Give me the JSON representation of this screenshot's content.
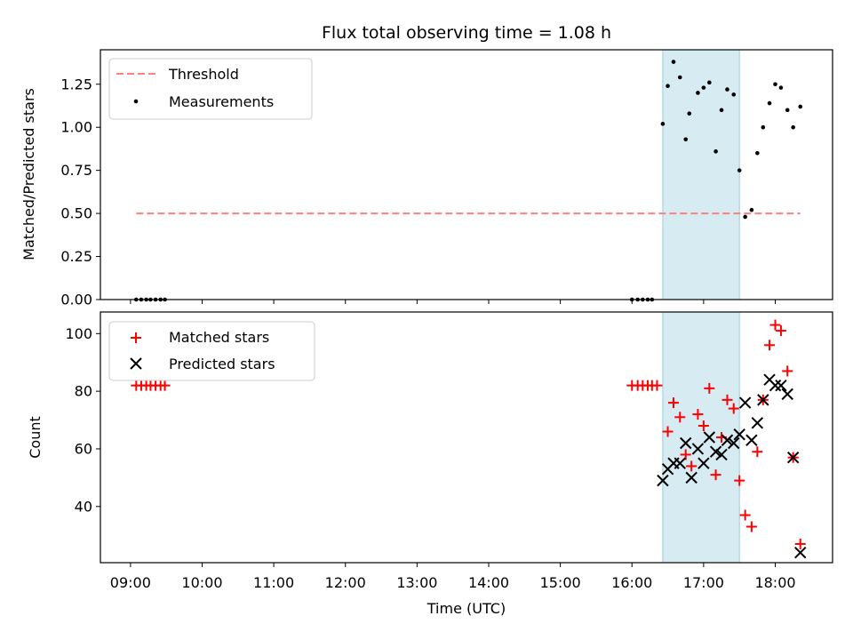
{
  "chart_data": [
    {
      "type": "scatter",
      "title": "Flux total observing time = 1.08 h",
      "xlabel": "",
      "ylabel": "Matched/Predicted stars",
      "xlim": [
        8.58,
        18.8
      ],
      "ylim": [
        0.0,
        1.45
      ],
      "yticks": [
        0.0,
        0.25,
        0.5,
        0.75,
        1.0,
        1.25
      ],
      "yticklabels": [
        "0.00",
        "0.25",
        "0.50",
        "0.75",
        "1.00",
        "1.25"
      ],
      "shaded_span": [
        16.43,
        17.5
      ],
      "threshold": {
        "name": "Threshold",
        "value": 0.5,
        "x_range": [
          9.08,
          18.35
        ],
        "color": "#ff7f7f"
      },
      "series": [
        {
          "name": "Measurements",
          "color": "#000000",
          "marker": "dot",
          "points": [
            [
              9.08,
              0
            ],
            [
              9.15,
              0
            ],
            [
              9.22,
              0
            ],
            [
              9.28,
              0
            ],
            [
              9.35,
              0
            ],
            [
              9.42,
              0
            ],
            [
              9.48,
              0
            ],
            [
              16.0,
              0
            ],
            [
              16.08,
              0
            ],
            [
              16.15,
              0
            ],
            [
              16.22,
              0
            ],
            [
              16.28,
              0
            ],
            [
              16.43,
              1.02
            ],
            [
              16.5,
              1.24
            ],
            [
              16.58,
              1.38
            ],
            [
              16.67,
              1.29
            ],
            [
              16.75,
              0.93
            ],
            [
              16.8,
              1.08
            ],
            [
              16.92,
              1.2
            ],
            [
              17.0,
              1.23
            ],
            [
              17.08,
              1.26
            ],
            [
              17.17,
              0.86
            ],
            [
              17.25,
              1.1
            ],
            [
              17.33,
              1.22
            ],
            [
              17.42,
              1.19
            ],
            [
              17.5,
              0.75
            ],
            [
              17.58,
              0.48
            ],
            [
              17.67,
              0.52
            ],
            [
              17.75,
              0.85
            ],
            [
              17.83,
              1.0
            ],
            [
              17.92,
              1.14
            ],
            [
              18.0,
              1.25
            ],
            [
              18.08,
              1.23
            ],
            [
              18.17,
              1.1
            ],
            [
              18.25,
              1.0
            ],
            [
              18.35,
              1.12
            ]
          ]
        }
      ],
      "legend": [
        "Threshold",
        "Measurements"
      ],
      "legend_position": "top-left"
    },
    {
      "type": "scatter",
      "title": "",
      "xlabel": "Time (UTC)",
      "ylabel": "Count",
      "xlim": [
        8.58,
        18.8
      ],
      "ylim": [
        20.5,
        107.5
      ],
      "yticks": [
        40,
        60,
        80,
        100
      ],
      "yticklabels": [
        "40",
        "60",
        "80",
        "100"
      ],
      "xticks": [
        9,
        10,
        11,
        12,
        13,
        14,
        15,
        16,
        17,
        18
      ],
      "xticklabels": [
        "09:00",
        "10:00",
        "11:00",
        "12:00",
        "13:00",
        "14:00",
        "15:00",
        "16:00",
        "17:00",
        "18:00"
      ],
      "shaded_span": [
        16.43,
        17.5
      ],
      "series": [
        {
          "name": "Matched stars",
          "color": "#ff0000",
          "marker": "plus",
          "points": [
            [
              9.08,
              82
            ],
            [
              9.15,
              82
            ],
            [
              9.22,
              82
            ],
            [
              9.28,
              82
            ],
            [
              9.35,
              82
            ],
            [
              9.42,
              82
            ],
            [
              9.48,
              82
            ],
            [
              16.0,
              82
            ],
            [
              16.08,
              82
            ],
            [
              16.15,
              82
            ],
            [
              16.22,
              82
            ],
            [
              16.28,
              82
            ],
            [
              16.35,
              82
            ],
            [
              16.5,
              66
            ],
            [
              16.58,
              76
            ],
            [
              16.67,
              71
            ],
            [
              16.75,
              58
            ],
            [
              16.83,
              54
            ],
            [
              16.92,
              72
            ],
            [
              17.0,
              68
            ],
            [
              17.08,
              81
            ],
            [
              17.17,
              51
            ],
            [
              17.25,
              64
            ],
            [
              17.33,
              77
            ],
            [
              17.42,
              74
            ],
            [
              17.5,
              49
            ],
            [
              17.58,
              37
            ],
            [
              17.67,
              33
            ],
            [
              17.75,
              59
            ],
            [
              17.83,
              77
            ],
            [
              17.92,
              96
            ],
            [
              18.0,
              103
            ],
            [
              18.08,
              101
            ],
            [
              18.17,
              87
            ],
            [
              18.25,
              57
            ],
            [
              18.35,
              27
            ]
          ]
        },
        {
          "name": "Predicted stars",
          "color": "#000000",
          "marker": "x",
          "points": [
            [
              16.43,
              49
            ],
            [
              16.5,
              53
            ],
            [
              16.58,
              55
            ],
            [
              16.67,
              55
            ],
            [
              16.75,
              62
            ],
            [
              16.83,
              50
            ],
            [
              16.92,
              60
            ],
            [
              17.0,
              55
            ],
            [
              17.08,
              64
            ],
            [
              17.17,
              59
            ],
            [
              17.25,
              58
            ],
            [
              17.33,
              63
            ],
            [
              17.42,
              62
            ],
            [
              17.5,
              65
            ],
            [
              17.58,
              76
            ],
            [
              17.67,
              63
            ],
            [
              17.75,
              69
            ],
            [
              17.83,
              77
            ],
            [
              17.92,
              84
            ],
            [
              18.0,
              82
            ],
            [
              18.08,
              82
            ],
            [
              18.17,
              79
            ],
            [
              18.25,
              57
            ],
            [
              18.35,
              24
            ]
          ]
        }
      ],
      "legend": [
        "Matched stars",
        "Predicted stars"
      ],
      "legend_position": "top-left"
    }
  ]
}
